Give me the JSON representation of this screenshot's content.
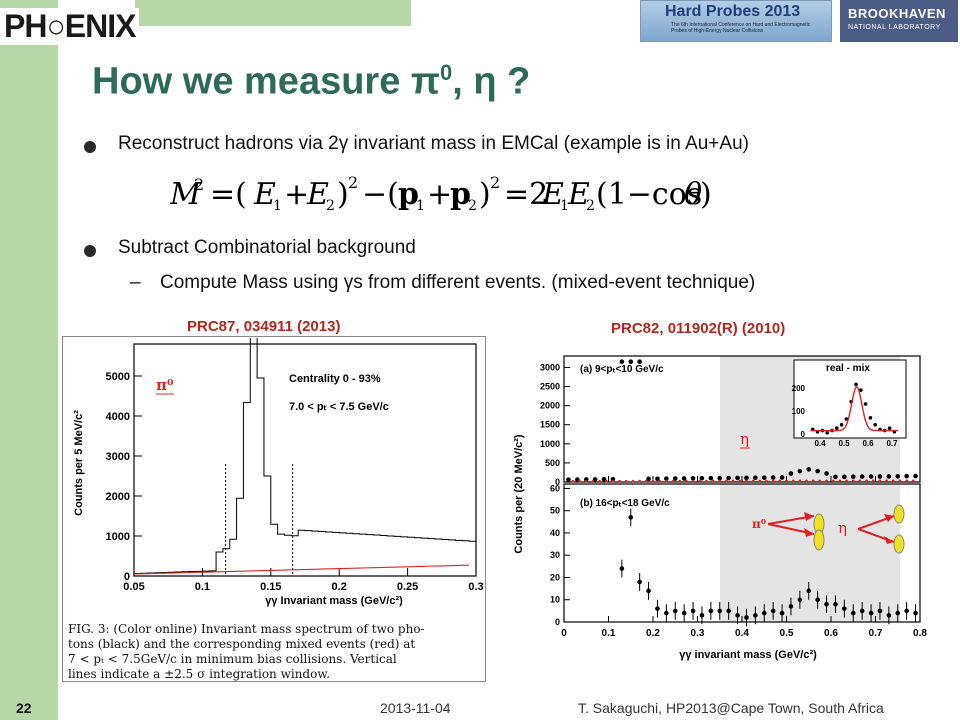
{
  "header": {
    "logo_text": "PH○ENIX",
    "conference": {
      "title": "Hard Probes 2013",
      "subtitle": "The 6th International Conference on Hard and Electromagnetic Probes of High-Energy Nuclear Collisions"
    },
    "lab": {
      "name": "BROOKHAVEN",
      "sub": "NATIONAL LABORATORY"
    }
  },
  "slide": {
    "title_main": "How we measure π",
    "title_sup": "0",
    "title_tail": ", η ?",
    "bullet1": "Reconstruct hadrons via 2γ invariant mass in EMCal (example is in Au+Au)",
    "bullet2": "Subtract Combinatorial background",
    "subbullet_dash": "–",
    "subbullet": "Compute Mass using γs from different events. (mixed-event technique)"
  },
  "left_figure": {
    "reference": "PRC87, 034911 (2013)",
    "ylabel": "Counts per 5 MeV/c²",
    "xlabel": "γγ Invariant mass (GeV/c²)",
    "yticks": [
      "0",
      "1000",
      "2000",
      "3000",
      "4000",
      "5000"
    ],
    "xticks": [
      "0.05",
      "0.1",
      "0.15",
      "0.2",
      "0.25",
      "0.3"
    ],
    "label_pi0": "π⁰",
    "text_centrality": "Centrality 0 - 93%",
    "text_pt": "7.0 <  pₜ < 7.5 GeV/c",
    "caption_lines": [
      "FIG. 3: (Color online) Invariant mass spectrum of two pho-",
      "tons (black) and the corresponding mixed events (red) at",
      "7 < pₜ < 7.5GeV/c in minimum bias collisions. Vertical",
      "lines indicate a ±2.5 σ integration window."
    ]
  },
  "right_figure": {
    "reference": "PRC82, 011902(R) (2010)",
    "ylabel": "Counts per (20 MeV/c²)",
    "xlabel": "γγ invariant mass (GeV/c²)",
    "top_yticks": [
      "0",
      "500",
      "1000",
      "1500",
      "2000",
      "2500",
      "3000"
    ],
    "bottom_yticks": [
      "0",
      "10",
      "20",
      "30",
      "40",
      "50",
      "60"
    ],
    "xticks": [
      "0",
      "0.1",
      "0.2",
      "0.3",
      "0.4",
      "0.5",
      "0.6",
      "0.7",
      "0.8"
    ],
    "label_a": "(a) 9<pₜ<10 GeV/c",
    "label_b": "(b) 16<pₜ<18 GeV/c",
    "inset_title": "real - mix",
    "inset_yticks": [
      "0",
      "100",
      "200"
    ],
    "inset_xticks": [
      "0.4",
      "0.5",
      "0.6",
      "0.7"
    ],
    "label_eta_top": "η",
    "label_pi0": "π⁰",
    "label_eta": "η"
  },
  "footer": {
    "page_number": "22",
    "date": "2013-11-04",
    "author": "T. Sakaguchi, HP2013@Cape Town, South Africa"
  },
  "colors": {
    "title": "#2d6b58",
    "sidebar": "#b8d7a6",
    "reference": "#b3261e",
    "annotation": "#e02020"
  }
}
